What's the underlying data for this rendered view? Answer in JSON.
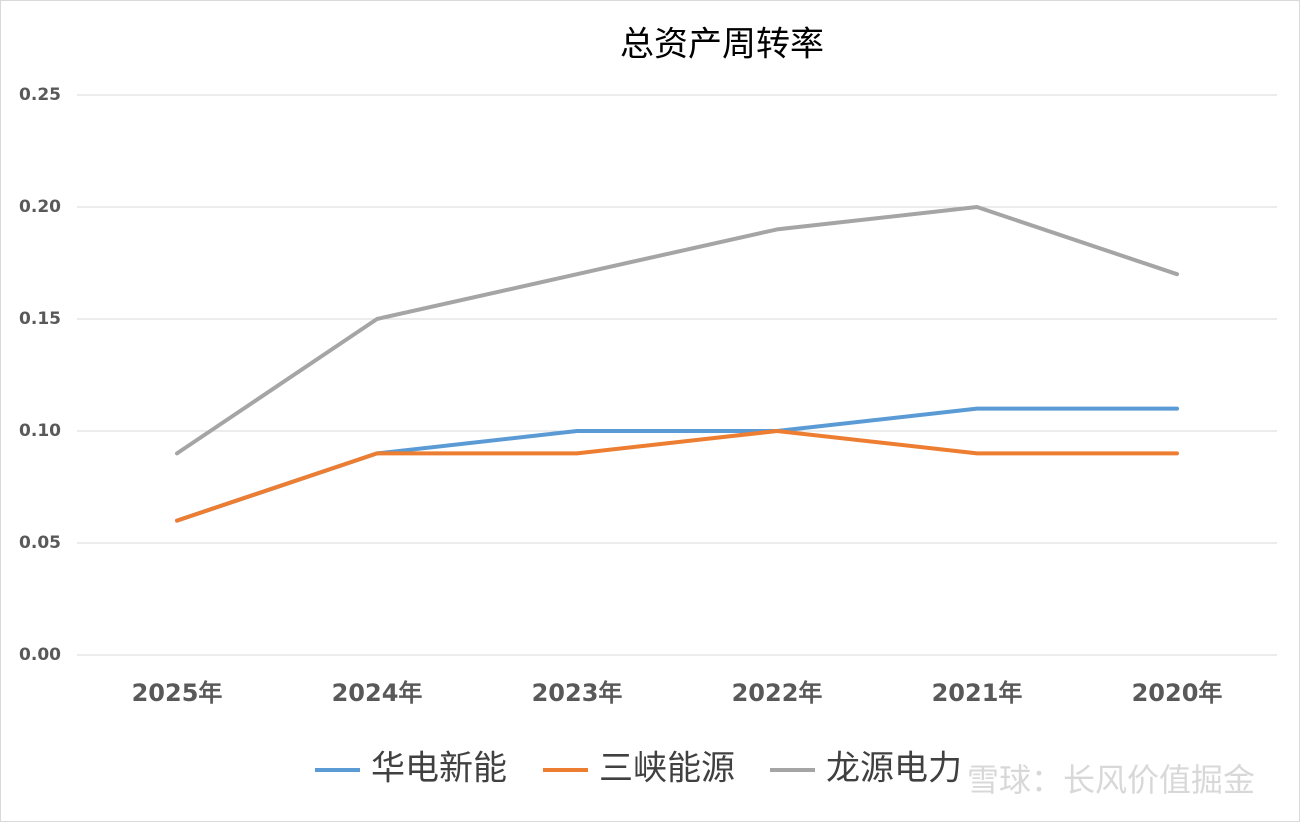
{
  "chart_data": {
    "type": "line",
    "title": "总资产周转率",
    "categories": [
      "2025年",
      "2024年",
      "2023年",
      "2022年",
      "2021年",
      "2020年"
    ],
    "series": [
      {
        "name": "华电新能",
        "color": "#5b9bd5",
        "values": [
          0.06,
          0.09,
          0.1,
          0.1,
          0.11,
          0.11
        ]
      },
      {
        "name": "三峡能源",
        "color": "#ed7d31",
        "values": [
          0.06,
          0.09,
          0.09,
          0.1,
          0.09,
          0.09
        ]
      },
      {
        "name": "龙源电力",
        "color": "#a5a5a5",
        "values": [
          0.09,
          0.15,
          0.17,
          0.19,
          0.2,
          0.17
        ]
      }
    ],
    "ylim": [
      0,
      0.25
    ],
    "yticks": [
      {
        "value": 0,
        "label": "0.00"
      },
      {
        "value": 0.05,
        "label": "0.05"
      },
      {
        "value": 0.1,
        "label": "0.10"
      },
      {
        "value": 0.15,
        "label": "0.15"
      },
      {
        "value": 0.2,
        "label": "0.20"
      },
      {
        "value": 0.25,
        "label": "0.25"
      }
    ],
    "grid": true,
    "legend": "bottom",
    "watermark": "雪球：长风价值掘金"
  }
}
